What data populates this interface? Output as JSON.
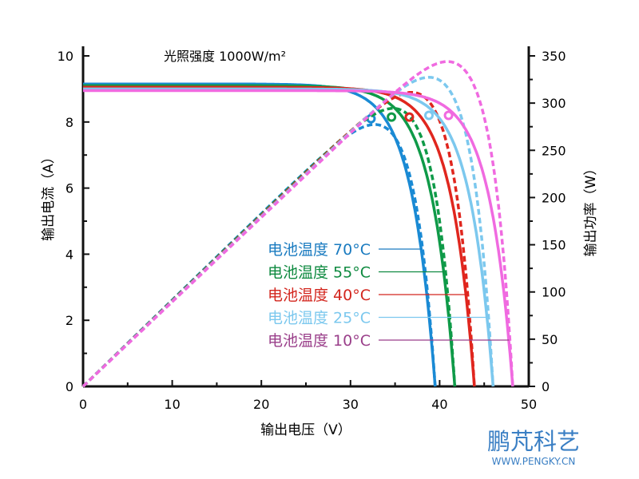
{
  "chart_data": {
    "type": "line",
    "title": "光照强度 1000W/m²",
    "xlabel": "输出电压（V）",
    "ylabel_left": "输出电流（A）",
    "ylabel_right": "输出功率（W）",
    "xlim": [
      0,
      50
    ],
    "ylim_left": [
      0,
      10
    ],
    "ylim_right": [
      0,
      350
    ],
    "x_ticks": [
      "0",
      "10",
      "20",
      "30",
      "40",
      "50"
    ],
    "y_left_ticks": [
      "0",
      "2",
      "4",
      "6",
      "8",
      "10"
    ],
    "y_right_ticks": [
      "0",
      "50",
      "100",
      "150",
      "200",
      "250",
      "300",
      "350"
    ],
    "grid": false,
    "legend_placement": "center",
    "series": [
      {
        "name": "电池温度 70°C",
        "color": "#1a8ad4",
        "isc": 9.15,
        "voc": 39.5,
        "mpp": [
          32.3,
          8.1
        ]
      },
      {
        "name": "电池温度 55°C",
        "color": "#0f9a48",
        "isc": 9.1,
        "voc": 41.7,
        "mpp": [
          34.6,
          8.15
        ]
      },
      {
        "name": "电池温度 40°C",
        "color": "#e0261e",
        "isc": 9.05,
        "voc": 43.9,
        "mpp": [
          36.6,
          8.15
        ]
      },
      {
        "name": "电池温度 25°C",
        "color": "#7cc8ee",
        "isc": 9.0,
        "voc": 46.0,
        "mpp": [
          38.8,
          8.2
        ]
      },
      {
        "name": "电池温度 10°C",
        "color": "#f06ae0",
        "isc": 8.95,
        "voc": 48.2,
        "mpp": [
          41.0,
          8.2
        ]
      }
    ],
    "legend_text_colors": [
      "#1a7bc0",
      "#0f8a40",
      "#d3261e",
      "#7cc8ee",
      "#9a3f8a"
    ],
    "notes_line_style": {
      "current": "solid",
      "power": "dashed"
    }
  },
  "logo": {
    "name": "鹏芃科艺",
    "url": "WWW.PENGKY.CN",
    "color": "#3a7fc4"
  }
}
